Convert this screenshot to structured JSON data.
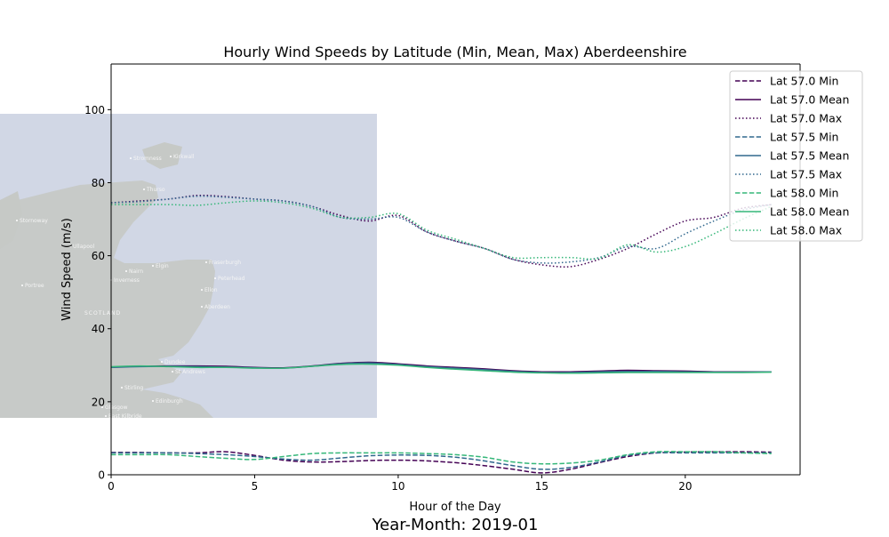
{
  "footer": "Year-Month: 2019-01",
  "map": {
    "region_label": "SCOTLAND",
    "places": [
      "Stromness",
      "Kirkwall",
      "Thurso",
      "Stornoway",
      "Ullapool",
      "Nairn",
      "Elgin",
      "Inverness",
      "Fraserburgh",
      "Peterhead",
      "Portree",
      "Ellon",
      "Aberdeen",
      "Dundee",
      "St Andrews",
      "Stirling",
      "Edinburgh",
      "Glasgow",
      "East Kilbride"
    ]
  },
  "chart_data": {
    "type": "line",
    "title": "Hourly Wind Speeds by Latitude (Min, Mean, Max) Aberdeenshire",
    "xlabel": "Hour of the Day",
    "ylabel": "Wind Speed (m/s)",
    "xlim": [
      0,
      24
    ],
    "ylim": [
      0,
      112.5
    ],
    "xticks": [
      0,
      5,
      10,
      15,
      20
    ],
    "yticks": [
      0,
      20,
      40,
      60,
      80,
      100
    ],
    "grid": false,
    "legend_position": "top-right",
    "x": [
      0,
      1,
      2,
      3,
      4,
      5,
      6,
      7,
      8,
      9,
      10,
      11,
      12,
      13,
      14,
      15,
      16,
      17,
      18,
      19,
      20,
      21,
      22,
      23
    ],
    "series": [
      {
        "name": "Lat 57.0 Min",
        "color": "#440154",
        "style": "dashed",
        "values": [
          6.1,
          6.1,
          6.0,
          6.0,
          6.3,
          5.3,
          4.0,
          3.5,
          3.6,
          3.9,
          4.0,
          3.8,
          3.3,
          2.5,
          1.5,
          0.5,
          1.5,
          3.3,
          5.0,
          6.0,
          6.2,
          6.3,
          6.3,
          6.2
        ]
      },
      {
        "name": "Lat 57.0 Mean",
        "color": "#440154",
        "style": "solid",
        "values": [
          29.5,
          29.7,
          29.8,
          29.8,
          29.7,
          29.4,
          29.3,
          29.8,
          30.5,
          30.8,
          30.4,
          29.8,
          29.4,
          29.0,
          28.5,
          28.2,
          28.2,
          28.4,
          28.6,
          28.5,
          28.4,
          28.2,
          28.2,
          28.2
        ]
      },
      {
        "name": "Lat 57.0 Max",
        "color": "#440154",
        "style": "dotted",
        "values": [
          74.5,
          75.0,
          75.5,
          76.5,
          76.2,
          75.5,
          75.0,
          73.5,
          71.0,
          69.5,
          71.0,
          66.5,
          64.0,
          62.0,
          59.0,
          57.5,
          57.0,
          59.0,
          62.0,
          66.0,
          69.5,
          70.5,
          73.0,
          74.0
        ]
      },
      {
        "name": "Lat 57.5 Min",
        "color": "#31688e",
        "style": "dashed",
        "values": [
          6.0,
          6.0,
          6.0,
          5.8,
          5.5,
          5.0,
          4.3,
          4.0,
          4.6,
          5.2,
          5.4,
          5.3,
          4.8,
          3.8,
          2.5,
          1.5,
          2.0,
          3.5,
          5.3,
          6.0,
          6.0,
          6.0,
          6.0,
          6.0
        ]
      },
      {
        "name": "Lat 57.5 Mean",
        "color": "#31688e",
        "style": "solid",
        "values": [
          29.4,
          29.6,
          29.7,
          29.6,
          29.5,
          29.3,
          29.2,
          29.7,
          30.4,
          30.6,
          30.2,
          29.6,
          29.2,
          28.8,
          28.3,
          28.0,
          28.0,
          28.2,
          28.3,
          28.3,
          28.2,
          28.1,
          28.1,
          28.2
        ]
      },
      {
        "name": "Lat 57.5 Max",
        "color": "#31688e",
        "style": "dotted",
        "values": [
          74.5,
          74.8,
          75.5,
          76.3,
          76.0,
          75.5,
          75.0,
          73.5,
          70.5,
          70.0,
          70.5,
          66.5,
          64.0,
          62.0,
          59.0,
          58.0,
          58.3,
          59.5,
          62.5,
          62.0,
          66.0,
          69.5,
          72.5,
          74.0
        ]
      },
      {
        "name": "Lat 58.0 Min",
        "color": "#35b779",
        "style": "dashed",
        "values": [
          5.5,
          5.5,
          5.5,
          5.0,
          4.5,
          4.2,
          5.0,
          5.8,
          6.0,
          6.0,
          6.0,
          5.8,
          5.5,
          4.8,
          3.5,
          3.0,
          3.2,
          4.0,
          5.5,
          6.3,
          6.3,
          6.3,
          6.0,
          5.8
        ]
      },
      {
        "name": "Lat 58.0 Mean",
        "color": "#35b779",
        "style": "solid",
        "values": [
          29.6,
          29.8,
          29.6,
          29.4,
          29.4,
          29.2,
          29.2,
          29.7,
          30.2,
          30.3,
          30.0,
          29.4,
          28.9,
          28.5,
          28.1,
          27.9,
          27.8,
          27.9,
          28.0,
          28.0,
          28.0,
          28.0,
          28.0,
          28.1
        ]
      },
      {
        "name": "Lat 58.0 Max",
        "color": "#35b779",
        "style": "dotted",
        "values": [
          74.0,
          74.0,
          74.0,
          73.8,
          74.5,
          75.0,
          74.5,
          73.0,
          70.5,
          70.5,
          71.5,
          67.0,
          64.5,
          62.0,
          59.5,
          59.5,
          59.5,
          59.3,
          63.0,
          61.0,
          62.5,
          66.0,
          70.0,
          73.5
        ]
      }
    ]
  }
}
